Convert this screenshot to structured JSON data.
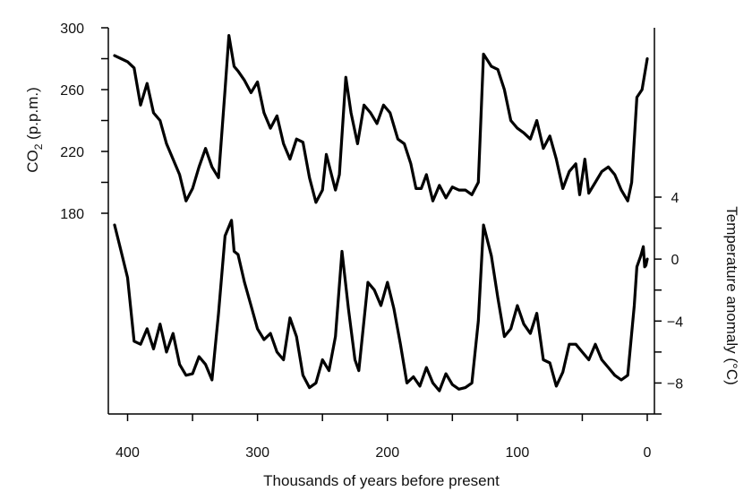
{
  "chart_data": {
    "type": "line",
    "title": "",
    "xlabel": "Thousands of years before present",
    "x_reversed": true,
    "xlim": [
      410,
      0
    ],
    "x_ticks": [
      400,
      300,
      200,
      100,
      0
    ],
    "left_axis": {
      "label_main": "CO",
      "label_sub": "2",
      "label_rest": " (p.p.m.)",
      "ylim": [
        180,
        300
      ],
      "ticks": [
        180,
        220,
        260,
        300
      ]
    },
    "right_axis": {
      "label": "Temperature anomaly (°C)",
      "ylim": [
        -10,
        4
      ],
      "ticks": [
        4,
        0,
        -4,
        -8
      ]
    },
    "series": [
      {
        "name": "CO2",
        "axis": "left",
        "color": "#000000",
        "points": [
          [
            410,
            282
          ],
          [
            405,
            280
          ],
          [
            400,
            278
          ],
          [
            395,
            274
          ],
          [
            390,
            250
          ],
          [
            385,
            264
          ],
          [
            380,
            245
          ],
          [
            375,
            240
          ],
          [
            370,
            225
          ],
          [
            365,
            215
          ],
          [
            360,
            205
          ],
          [
            355,
            188
          ],
          [
            350,
            196
          ],
          [
            345,
            210
          ],
          [
            340,
            222
          ],
          [
            335,
            210
          ],
          [
            330,
            203
          ],
          [
            325,
            260
          ],
          [
            322,
            295
          ],
          [
            318,
            275
          ],
          [
            315,
            272
          ],
          [
            310,
            266
          ],
          [
            305,
            258
          ],
          [
            300,
            265
          ],
          [
            295,
            245
          ],
          [
            290,
            235
          ],
          [
            285,
            243
          ],
          [
            280,
            225
          ],
          [
            275,
            215
          ],
          [
            270,
            228
          ],
          [
            265,
            226
          ],
          [
            260,
            203
          ],
          [
            255,
            187
          ],
          [
            250,
            195
          ],
          [
            247,
            218
          ],
          [
            240,
            195
          ],
          [
            237,
            205
          ],
          [
            232,
            268
          ],
          [
            228,
            245
          ],
          [
            223,
            225
          ],
          [
            218,
            250
          ],
          [
            213,
            245
          ],
          [
            208,
            238
          ],
          [
            203,
            250
          ],
          [
            198,
            245
          ],
          [
            192,
            228
          ],
          [
            187,
            225
          ],
          [
            182,
            212
          ],
          [
            178,
            196
          ],
          [
            174,
            196
          ],
          [
            170,
            205
          ],
          [
            165,
            188
          ],
          [
            160,
            198
          ],
          [
            155,
            190
          ],
          [
            150,
            197
          ],
          [
            145,
            195
          ],
          [
            140,
            195
          ],
          [
            135,
            192
          ],
          [
            130,
            200
          ],
          [
            126,
            283
          ],
          [
            120,
            275
          ],
          [
            115,
            273
          ],
          [
            110,
            260
          ],
          [
            105,
            240
          ],
          [
            100,
            235
          ],
          [
            95,
            232
          ],
          [
            90,
            228
          ],
          [
            85,
            240
          ],
          [
            80,
            222
          ],
          [
            75,
            230
          ],
          [
            70,
            215
          ],
          [
            65,
            196
          ],
          [
            60,
            207
          ],
          [
            55,
            212
          ],
          [
            52,
            192
          ],
          [
            48,
            215
          ],
          [
            45,
            193
          ],
          [
            40,
            200
          ],
          [
            35,
            207
          ],
          [
            30,
            210
          ],
          [
            25,
            205
          ],
          [
            20,
            195
          ],
          [
            15,
            188
          ],
          [
            12,
            200
          ],
          [
            8,
            255
          ],
          [
            4,
            260
          ],
          [
            0,
            280
          ]
        ]
      },
      {
        "name": "Temperature",
        "axis": "right",
        "color": "#000000",
        "points": [
          [
            410,
            2.2
          ],
          [
            405,
            0.5
          ],
          [
            400,
            -1.2
          ],
          [
            395,
            -5.3
          ],
          [
            390,
            -5.5
          ],
          [
            385,
            -4.5
          ],
          [
            380,
            -5.8
          ],
          [
            375,
            -4.2
          ],
          [
            370,
            -6
          ],
          [
            365,
            -4.8
          ],
          [
            360,
            -6.8
          ],
          [
            355,
            -7.5
          ],
          [
            350,
            -7.4
          ],
          [
            345,
            -6.3
          ],
          [
            340,
            -6.8
          ],
          [
            335,
            -7.8
          ],
          [
            330,
            -3.5
          ],
          [
            325,
            1.5
          ],
          [
            320,
            2.5
          ],
          [
            318,
            0.5
          ],
          [
            315,
            0.3
          ],
          [
            310,
            -1.5
          ],
          [
            305,
            -3
          ],
          [
            300,
            -4.5
          ],
          [
            295,
            -5.2
          ],
          [
            290,
            -4.8
          ],
          [
            285,
            -6
          ],
          [
            280,
            -6.5
          ],
          [
            275,
            -3.8
          ],
          [
            270,
            -5
          ],
          [
            265,
            -7.5
          ],
          [
            260,
            -8.3
          ],
          [
            255,
            -8
          ],
          [
            250,
            -6.5
          ],
          [
            245,
            -7.2
          ],
          [
            240,
            -5
          ],
          [
            235,
            0.5
          ],
          [
            230,
            -3.2
          ],
          [
            225,
            -6.5
          ],
          [
            222,
            -7.2
          ],
          [
            215,
            -1.5
          ],
          [
            210,
            -2
          ],
          [
            205,
            -3
          ],
          [
            200,
            -1.5
          ],
          [
            195,
            -3.2
          ],
          [
            190,
            -5.5
          ],
          [
            185,
            -8
          ],
          [
            180,
            -7.6
          ],
          [
            175,
            -8.2
          ],
          [
            170,
            -7
          ],
          [
            165,
            -8
          ],
          [
            160,
            -8.5
          ],
          [
            155,
            -7.4
          ],
          [
            150,
            -8.1
          ],
          [
            145,
            -8.4
          ],
          [
            140,
            -8.3
          ],
          [
            135,
            -8
          ],
          [
            130,
            -4
          ],
          [
            126,
            2.2
          ],
          [
            120,
            0.2
          ],
          [
            115,
            -2.5
          ],
          [
            110,
            -5
          ],
          [
            105,
            -4.5
          ],
          [
            100,
            -3
          ],
          [
            95,
            -4.2
          ],
          [
            90,
            -4.8
          ],
          [
            85,
            -3.5
          ],
          [
            80,
            -6.5
          ],
          [
            75,
            -6.7
          ],
          [
            70,
            -8.2
          ],
          [
            65,
            -7.3
          ],
          [
            60,
            -5.5
          ],
          [
            55,
            -5.5
          ],
          [
            50,
            -6
          ],
          [
            45,
            -6.5
          ],
          [
            40,
            -5.5
          ],
          [
            35,
            -6.5
          ],
          [
            30,
            -7
          ],
          [
            25,
            -7.5
          ],
          [
            20,
            -7.8
          ],
          [
            15,
            -7.5
          ],
          [
            10,
            -3
          ],
          [
            8,
            -0.5
          ],
          [
            5,
            0.2
          ],
          [
            3,
            0.8
          ],
          [
            2,
            -0.5
          ],
          [
            1,
            -0.4
          ],
          [
            0,
            0
          ]
        ]
      }
    ]
  }
}
